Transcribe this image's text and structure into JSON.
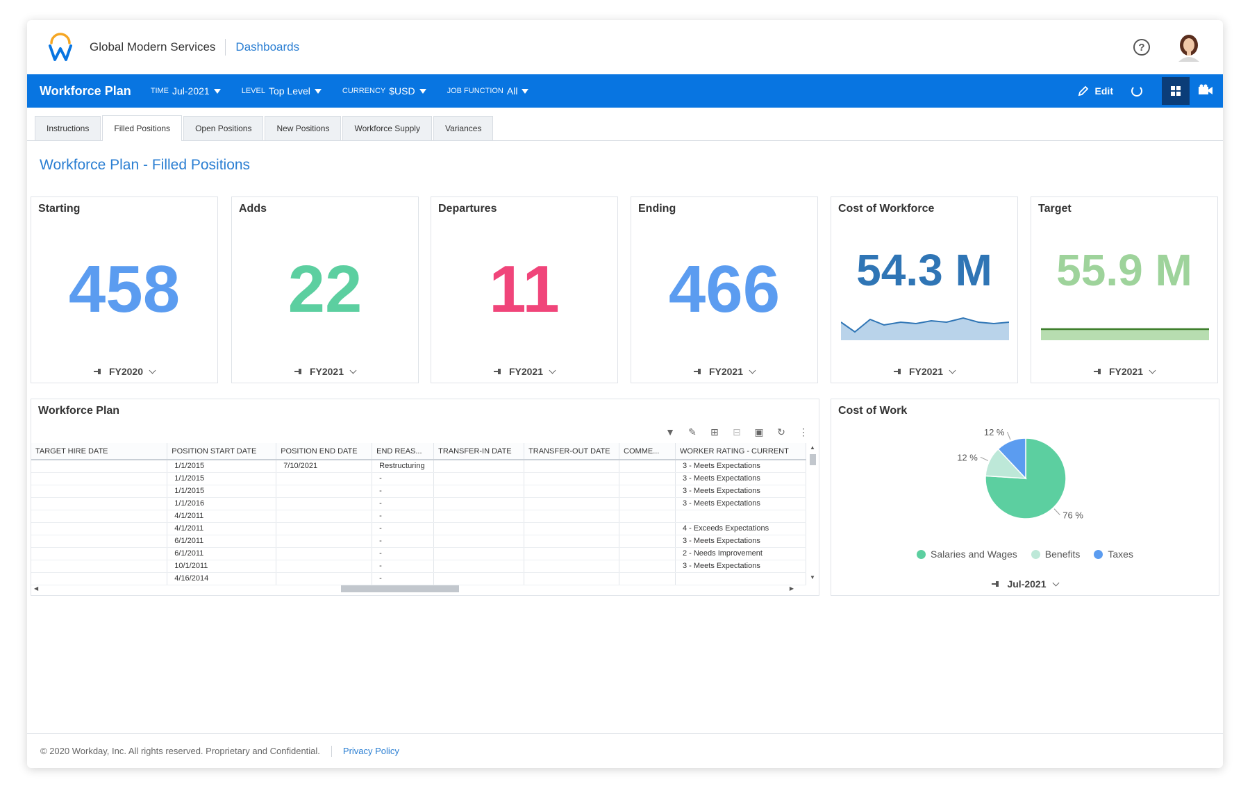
{
  "header": {
    "company": "Global Modern Services",
    "breadcrumb": "Dashboards",
    "help_symbol": "?",
    "icons": {
      "logo": "workday-logo",
      "help": "question-circle-icon",
      "avatar": "user-avatar"
    },
    "colors": {
      "logo_orange": "#f5a623",
      "logo_blue": "#0875e1"
    }
  },
  "toolbar": {
    "title": "Workforce Plan",
    "prompts": [
      {
        "label": "TIME",
        "value": "Jul-2021"
      },
      {
        "label": "LEVEL",
        "value": "Top Level"
      },
      {
        "label": "CURRENCY",
        "value": "$USD"
      },
      {
        "label": "JOB FUNCTION",
        "value": "All"
      }
    ],
    "edit_label": "Edit",
    "icons": [
      "pencil-icon",
      "refresh-icon",
      "grid-view-icon",
      "video-camera-icon"
    ],
    "color": "#0875e1"
  },
  "tabs": [
    {
      "label": "Instructions",
      "active": false
    },
    {
      "label": "Filled Positions",
      "active": true
    },
    {
      "label": "Open Positions",
      "active": false
    },
    {
      "label": "New Positions",
      "active": false
    },
    {
      "label": "Workforce Supply",
      "active": false
    },
    {
      "label": "Variances",
      "active": false
    }
  ],
  "page_title": "Workforce Plan - Filled Positions",
  "kpis": [
    {
      "title": "Starting",
      "value": "458",
      "period": "FY2020",
      "color": "#5b9cf0"
    },
    {
      "title": "Adds",
      "value": "22",
      "period": "FY2021",
      "color": "#5ccfa0"
    },
    {
      "title": "Departures",
      "value": "11",
      "period": "FY2021",
      "color": "#f0457a"
    },
    {
      "title": "Ending",
      "value": "466",
      "period": "FY2021",
      "color": "#5b9cf0"
    },
    {
      "title": "Cost of Workforce",
      "value": "54.3 M",
      "period": "FY2021",
      "color": "#2f75b5"
    },
    {
      "title": "Target",
      "value": "55.9 M",
      "period": "FY2021",
      "color": "#9ed39b"
    }
  ],
  "workforce_table": {
    "title": "Workforce Plan",
    "tool_icons": [
      "filter-icon",
      "edit-filter-icon",
      "add-row-icon",
      "remove-row-icon",
      "save-icon",
      "refresh-icon",
      "more-vertical-icon"
    ],
    "columns": [
      "TARGET HIRE DATE",
      "POSITION START DATE",
      "POSITION END DATE",
      "END REAS...",
      "TRANSFER-IN DATE",
      "TRANSFER-OUT DATE",
      "COMME...",
      "WORKER RATING - CURRENT"
    ],
    "rows": [
      [
        "",
        "1/1/2015",
        "7/10/2021",
        "Restructuring",
        "",
        "",
        "",
        "3 - Meets Expectations"
      ],
      [
        "",
        "1/1/2015",
        "",
        "-",
        "",
        "",
        "",
        "3 - Meets Expectations"
      ],
      [
        "",
        "1/1/2015",
        "",
        "-",
        "",
        "",
        "",
        "3 - Meets Expectations"
      ],
      [
        "",
        "1/1/2016",
        "",
        "-",
        "",
        "",
        "",
        "3 - Meets Expectations"
      ],
      [
        "",
        "4/1/2011",
        "",
        "-",
        "",
        "",
        "",
        ""
      ],
      [
        "",
        "4/1/2011",
        "",
        "-",
        "",
        "",
        "",
        "4 - Exceeds Expectations"
      ],
      [
        "",
        "6/1/2011",
        "",
        "-",
        "",
        "",
        "",
        "3 - Meets Expectations"
      ],
      [
        "",
        "6/1/2011",
        "",
        "-",
        "",
        "",
        "",
        "2 - Needs Improvement"
      ],
      [
        "",
        "10/1/2011",
        "",
        "-",
        "",
        "",
        "",
        "3 - Meets Expectations"
      ],
      [
        "",
        "4/16/2014",
        "",
        "-",
        "",
        "",
        "",
        ""
      ]
    ]
  },
  "cost_of_work": {
    "title": "Cost of Work",
    "period": "Jul-2021"
  },
  "chart_data": {
    "type": "pie",
    "title": "Cost of Work",
    "categories": [
      "Salaries and Wages",
      "Benefits",
      "Taxes"
    ],
    "values": [
      76,
      12,
      12
    ],
    "labels": [
      "76 %",
      "12 %",
      "12 %"
    ],
    "colors": [
      "#5ccfa0",
      "#bde8d8",
      "#5b9cf0"
    ],
    "legend": "bottom"
  },
  "footer": {
    "copyright": "© 2020 Workday, Inc. All rights reserved. Proprietary and Confidential.",
    "privacy": "Privacy Policy"
  }
}
